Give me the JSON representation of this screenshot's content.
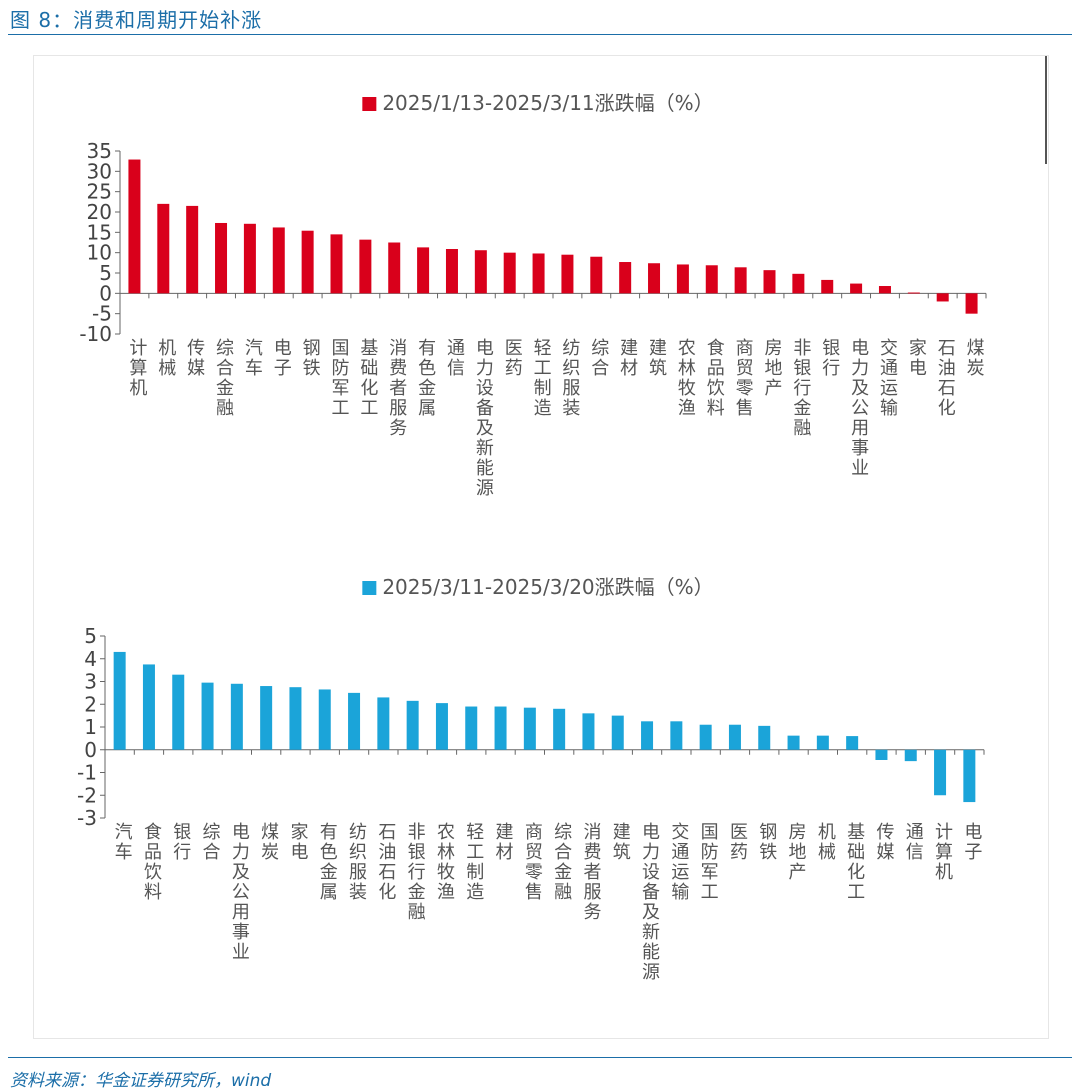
{
  "figure": {
    "title": "图 8：消费和周期开始补涨",
    "source": "资料来源：华金证券研究所，wind"
  },
  "colors": {
    "accent": "#1b6ea8",
    "series1": "#d9001b",
    "series2": "#1ba4d9"
  },
  "chart_data": [
    {
      "type": "bar",
      "legend": "2025/1/13-2025/3/11涨跌幅（%）",
      "legend_position": "top-center",
      "grid": false,
      "ylim": [
        -10,
        35
      ],
      "yticks": [
        35,
        30,
        25,
        20,
        15,
        10,
        5,
        0,
        -5,
        -10
      ],
      "categories": [
        "计算机",
        "机械",
        "传媒",
        "综合金融",
        "汽车",
        "电子",
        "钢铁",
        "国防军工",
        "基础化工",
        "消费者服务",
        "有色金属",
        "通信",
        "电力设备及新能源",
        "医药",
        "轻工制造",
        "纺织服装",
        "综合",
        "建材",
        "建筑",
        "农林牧渔",
        "食品饮料",
        "商贸零售",
        "房地产",
        "非银行金融",
        "银行",
        "电力及公用事业",
        "交通运输",
        "家电",
        "石油石化",
        "煤炭"
      ],
      "values": [
        32.9,
        22.0,
        21.5,
        17.3,
        17.1,
        16.2,
        15.4,
        14.5,
        13.2,
        12.5,
        11.3,
        10.9,
        10.6,
        10.0,
        9.8,
        9.5,
        9.0,
        7.7,
        7.4,
        7.1,
        6.9,
        6.4,
        5.7,
        4.8,
        3.3,
        2.4,
        1.8,
        0.2,
        -2.0,
        -5.0
      ]
    },
    {
      "type": "bar",
      "legend": "2025/3/11-2025/3/20涨跌幅（%）",
      "legend_position": "top-center",
      "grid": false,
      "ylim": [
        -3,
        5
      ],
      "yticks": [
        5,
        4,
        3,
        2,
        1,
        0,
        -1,
        -2,
        -3
      ],
      "categories": [
        "汽车",
        "食品饮料",
        "银行",
        "综合",
        "电力及公用事业",
        "煤炭",
        "家电",
        "有色金属",
        "纺织服装",
        "石油石化",
        "非银行金融",
        "农林牧渔",
        "轻工制造",
        "建材",
        "商贸零售",
        "综合金融",
        "消费者服务",
        "建筑",
        "电力设备及新能源",
        "交通运输",
        "国防军工",
        "医药",
        "钢铁",
        "房地产",
        "机械",
        "基础化工",
        "传媒",
        "通信",
        "计算机",
        "电子"
      ],
      "values": [
        4.3,
        3.75,
        3.3,
        2.95,
        2.9,
        2.8,
        2.75,
        2.65,
        2.5,
        2.3,
        2.15,
        2.05,
        1.9,
        1.9,
        1.85,
        1.8,
        1.6,
        1.5,
        1.25,
        1.25,
        1.1,
        1.1,
        1.05,
        0.62,
        0.62,
        0.6,
        -0.45,
        -0.5,
        -2.0,
        -2.3
      ]
    }
  ]
}
